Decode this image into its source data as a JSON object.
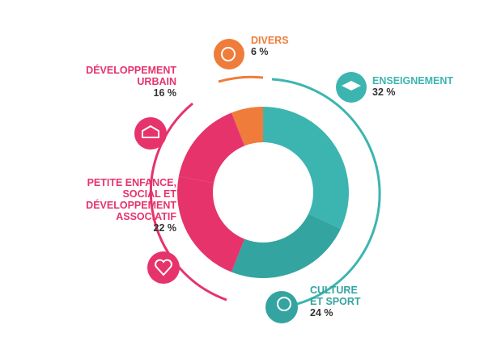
{
  "chart_data": {
    "type": "donut",
    "categories": [
      "DIVERS",
      "ENSEIGNEMENT",
      "CULTURE\nET SPORT",
      "PETITE ENFANCE,\nSOCIAL ET\nDÉVELOPPEMENT\nASSOCIATIF",
      "DÉVELOPPEMENT\nURBAIN"
    ],
    "values": [
      6,
      32,
      24,
      22,
      16
    ],
    "value_labels": [
      "6 %",
      "32 %",
      "24 %",
      "22 %",
      "16 %"
    ],
    "colors": [
      "#ef7c3a",
      "#3cb5b0",
      "#33a4a0",
      "#e6336c",
      "#e6336c"
    ]
  }
}
